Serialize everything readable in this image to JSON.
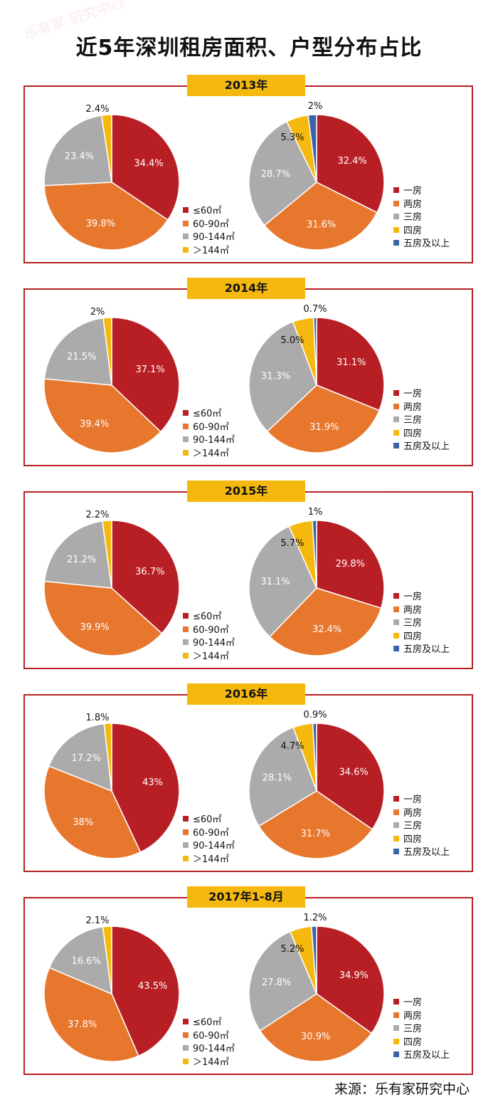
{
  "title": "近5年深圳租房面积、户型分布占比",
  "source": "来源：乐有家研究中心",
  "watermark": "乐有家 研究中心",
  "colors": {
    "red": "#b81f24",
    "orange": "#e8772e",
    "gray": "#ababab",
    "yellow": "#f5b80f",
    "blue": "#3c63a8"
  },
  "area_legend": [
    "≤60㎡",
    "60-90㎡",
    "90-144㎡",
    "＞144㎡"
  ],
  "room_legend": [
    "一房",
    "两房",
    "三房",
    "四房",
    "五房及以上"
  ],
  "chart_data": [
    {
      "type": "pie",
      "title": "2013年",
      "area": {
        "categories": [
          "≤60㎡",
          "60-90㎡",
          "90-144㎡",
          "＞144㎡"
        ],
        "values": [
          34.4,
          39.8,
          23.4,
          2.4
        ],
        "labels": [
          "34.4%",
          "39.8%",
          "23.4%",
          "2.4%"
        ]
      },
      "rooms": {
        "categories": [
          "一房",
          "两房",
          "三房",
          "四房",
          "五房及以上"
        ],
        "values": [
          32.4,
          31.6,
          28.7,
          5.3,
          2.0
        ],
        "labels": [
          "32.4%",
          "31.6%",
          "28.7%",
          "5.3%",
          "2%"
        ]
      }
    },
    {
      "type": "pie",
      "title": "2014年",
      "area": {
        "categories": [
          "≤60㎡",
          "60-90㎡",
          "90-144㎡",
          "＞144㎡"
        ],
        "values": [
          37.1,
          39.4,
          21.5,
          2.0
        ],
        "labels": [
          "37.1%",
          "39.4%",
          "21.5%",
          "2%"
        ]
      },
      "rooms": {
        "categories": [
          "一房",
          "两房",
          "三房",
          "四房",
          "五房及以上"
        ],
        "values": [
          31.1,
          31.9,
          31.3,
          5.0,
          0.7
        ],
        "labels": [
          "31.1%",
          "31.9%",
          "31.3%",
          "5.0%",
          "0.7%"
        ]
      }
    },
    {
      "type": "pie",
      "title": "2015年",
      "area": {
        "categories": [
          "≤60㎡",
          "60-90㎡",
          "90-144㎡",
          "＞144㎡"
        ],
        "values": [
          36.7,
          39.9,
          21.2,
          2.2
        ],
        "labels": [
          "36.7%",
          "39.9%",
          "21.2%",
          "2.2%"
        ]
      },
      "rooms": {
        "categories": [
          "一房",
          "两房",
          "三房",
          "四房",
          "五房及以上"
        ],
        "values": [
          29.8,
          32.4,
          31.1,
          5.7,
          1.0
        ],
        "labels": [
          "29.8%",
          "32.4%",
          "31.1%",
          "5.7%",
          "1%"
        ]
      }
    },
    {
      "type": "pie",
      "title": "2016年",
      "area": {
        "categories": [
          "≤60㎡",
          "60-90㎡",
          "90-144㎡",
          "＞144㎡"
        ],
        "values": [
          43,
          38,
          17.2,
          1.8
        ],
        "labels": [
          "43%",
          "38%",
          "17.2%",
          "1.8%"
        ]
      },
      "rooms": {
        "categories": [
          "一房",
          "两房",
          "三房",
          "四房",
          "五房及以上"
        ],
        "values": [
          34.6,
          31.7,
          28.1,
          4.7,
          0.9
        ],
        "labels": [
          "34.6%",
          "31.7%",
          "28.1%",
          "4.7%",
          "0.9%"
        ]
      }
    },
    {
      "type": "pie",
      "title": "2017年1-8月",
      "area": {
        "categories": [
          "≤60㎡",
          "60-90㎡",
          "90-144㎡",
          "＞144㎡"
        ],
        "values": [
          43.5,
          37.8,
          16.6,
          2.1
        ],
        "labels": [
          "43.5%",
          "37.8%",
          "16.6%",
          "2.1%"
        ]
      },
      "rooms": {
        "categories": [
          "一房",
          "两房",
          "三房",
          "四房",
          "五房及以上"
        ],
        "values": [
          34.9,
          30.9,
          27.8,
          5.2,
          1.2
        ],
        "labels": [
          "34.9%",
          "30.9%",
          "27.8%",
          "5.2%",
          "1.2%"
        ]
      }
    }
  ]
}
